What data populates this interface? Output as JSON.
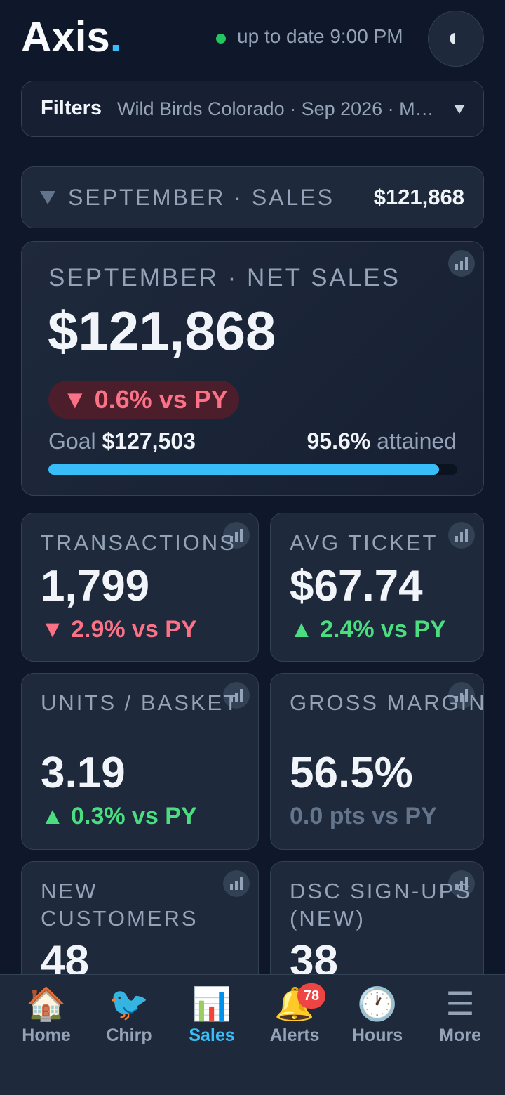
{
  "header": {
    "brand": "Axis",
    "brand_dot": ".",
    "status": "up to date 9:00 PM"
  },
  "filters": {
    "label": "Filters",
    "summary": "Wild Birds Colorado · Sep 2026 · M…"
  },
  "section": {
    "title": "SEPTEMBER · SALES",
    "total": "$121,868"
  },
  "hero": {
    "label": "SEPTEMBER · NET SALES",
    "value": "$121,868",
    "delta": "▼ 0.6% vs PY",
    "goal_label": "Goal",
    "goal_value": "$127,503",
    "attained": {
      "value": 95.6,
      "label": "95.6%"
    },
    "attained_text": "attained"
  },
  "kpis": [
    {
      "label": "TRANSACTIONS",
      "value": "1,799",
      "delta": "▼ 2.9% vs PY",
      "trend": "down"
    },
    {
      "label": "AVG TICKET",
      "value": "$67.74",
      "delta": "▲ 2.4% vs PY",
      "trend": "up"
    },
    {
      "label": "UNITS / BASKET",
      "value": "3.19",
      "delta": "▲ 0.3% vs PY",
      "trend": "up"
    },
    {
      "label": "GROSS MARGIN",
      "value": "56.5%",
      "delta": "0.0 pts vs PY",
      "trend": "flat"
    },
    {
      "label": "NEW CUSTOMERS",
      "value": "48"
    },
    {
      "label": "DSC SIGN-UPS (NEW)",
      "value": "38"
    }
  ],
  "nav": [
    {
      "icon": "🏠",
      "label": "Home"
    },
    {
      "icon": "🐦",
      "label": "Chirp"
    },
    {
      "icon": "📊",
      "label": "Sales",
      "active": true
    },
    {
      "icon": "🔔",
      "label": "Alerts",
      "badge": "78"
    },
    {
      "icon": "🕐",
      "label": "Hours"
    },
    {
      "icon": "☰",
      "label": "More"
    }
  ]
}
